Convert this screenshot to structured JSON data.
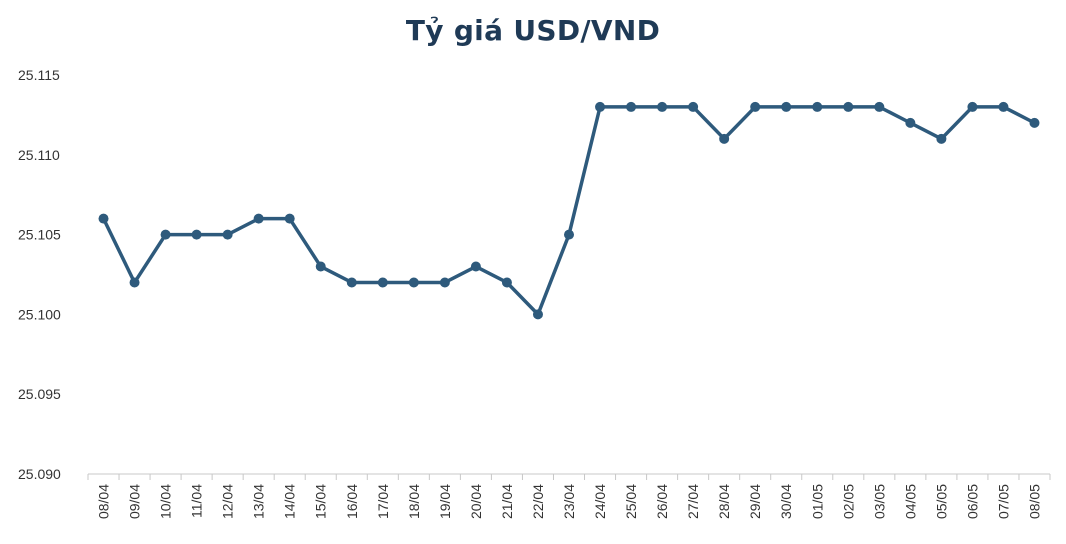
{
  "chart_data": {
    "type": "line",
    "title": "Tỷ giá USD/VND",
    "xlabel": "",
    "ylabel": "",
    "ylim": [
      25.09,
      25.116
    ],
    "y_ticks": [
      "25.090",
      "25.095",
      "25.100",
      "25.105",
      "25.110",
      "25.115"
    ],
    "y_tick_values": [
      25.09,
      25.095,
      25.1,
      25.105,
      25.11,
      25.115
    ],
    "categories": [
      "08/04",
      "09/04",
      "10/04",
      "11/04",
      "12/04",
      "13/04",
      "14/04",
      "15/04",
      "16/04",
      "17/04",
      "18/04",
      "19/04",
      "20/04",
      "21/04",
      "22/04",
      "23/04",
      "24/04",
      "25/04",
      "26/04",
      "27/04",
      "28/04",
      "29/04",
      "30/04",
      "01/05",
      "02/05",
      "03/05",
      "04/05",
      "05/05",
      "06/05",
      "07/05",
      "08/05"
    ],
    "series": [
      {
        "values": [
          25.106,
          25.102,
          25.105,
          25.105,
          25.105,
          25.106,
          25.106,
          25.103,
          25.102,
          25.102,
          25.102,
          25.102,
          25.103,
          25.102,
          25.1,
          25.105,
          25.113,
          25.113,
          25.113,
          25.113,
          25.111,
          25.113,
          25.113,
          25.113,
          25.113,
          25.113,
          25.112,
          25.111,
          25.113,
          25.113,
          25.112
        ],
        "color": "#2e5a7c"
      }
    ],
    "grid": false,
    "legend": "none"
  }
}
